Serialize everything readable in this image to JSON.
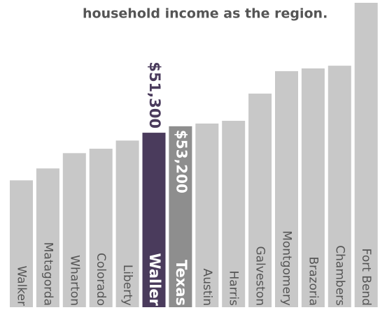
{
  "chart_data": {
    "type": "bar",
    "title": "household income as the region.",
    "categories": [
      "Walker",
      "Matagorda",
      "Wharton",
      "Colorado",
      "Liberty",
      "Waller",
      "Texas",
      "Austin",
      "Harris",
      "Galveston",
      "Montgomery",
      "Brazoria",
      "Chambers",
      "Fort Bend"
    ],
    "values": [
      37300,
      40800,
      45300,
      46600,
      49000,
      51300,
      53200,
      54000,
      54800,
      62800,
      69400,
      70200,
      71000,
      89500
    ],
    "value_labels": [
      null,
      null,
      null,
      null,
      null,
      "$51,300",
      "$53,200",
      null,
      null,
      null,
      null,
      null,
      null,
      null
    ],
    "colors": [
      "#c8c8c8",
      "#c8c8c8",
      "#c8c8c8",
      "#c8c8c8",
      "#c8c8c8",
      "#4a3b5c",
      "#8e8e8e",
      "#c8c8c8",
      "#c8c8c8",
      "#c8c8c8",
      "#c8c8c8",
      "#c8c8c8",
      "#c8c8c8",
      "#c8c8c8"
    ]
  }
}
